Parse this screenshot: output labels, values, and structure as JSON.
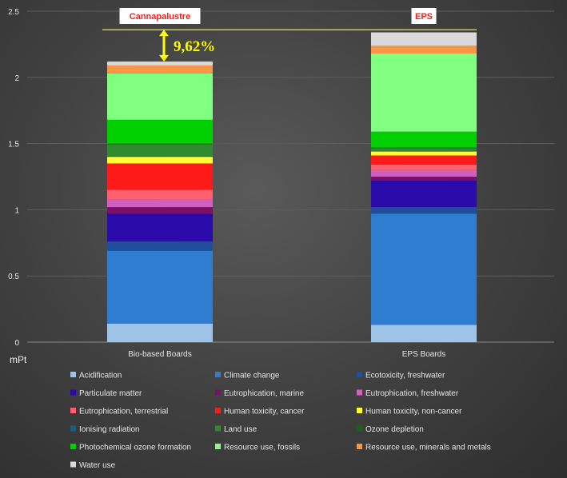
{
  "chart_data": {
    "type": "bar",
    "stacked": true,
    "ylabel": "mPt",
    "ylim": [
      0,
      2.5
    ],
    "yticks": [
      "0",
      "0.5",
      "1",
      "1.5",
      "2",
      "2.5"
    ],
    "categories": [
      "Bio-based Boards",
      "EPS Boards"
    ],
    "bar_labels": [
      "Cannapalustre",
      "EPS"
    ],
    "annotation": "9,62%",
    "reference_line_value": 2.36,
    "series": [
      {
        "name": "Acidification",
        "color": "#9dc3e6",
        "values": [
          0.14,
          0.13
        ]
      },
      {
        "name": "Climate change",
        "color": "#2e7dd1",
        "values": [
          0.55,
          0.84
        ]
      },
      {
        "name": "Ecotoxicity, freshwater",
        "color": "#1f4e9c",
        "values": [
          0.07,
          0.05
        ]
      },
      {
        "name": "Particulate matter",
        "color": "#2a0aa8",
        "values": [
          0.21,
          0.2
        ]
      },
      {
        "name": "Eutrophication, marine",
        "color": "#7a1068",
        "values": [
          0.05,
          0.03
        ]
      },
      {
        "name": "Eutrophication, freshwater",
        "color": "#d060c0",
        "values": [
          0.06,
          0.05
        ]
      },
      {
        "name": "Eutrophication, terrestrial",
        "color": "#ff6070",
        "values": [
          0.07,
          0.04
        ]
      },
      {
        "name": "Human toxicity, cancer",
        "color": "#ff1a1a",
        "values": [
          0.2,
          0.07
        ]
      },
      {
        "name": "Human toxicity, non-cancer",
        "color": "#ffff33",
        "values": [
          0.05,
          0.03
        ]
      },
      {
        "name": "Ionising radiation",
        "color": "#1a5f80",
        "values": [
          0.005,
          0.005
        ]
      },
      {
        "name": "Land use",
        "color": "#2e8b2e",
        "values": [
          0.09,
          0.02
        ]
      },
      {
        "name": "Ozone depletion",
        "color": "#1e5e1e",
        "values": [
          0.005,
          0.005
        ]
      },
      {
        "name": "Photochemical ozone formation",
        "color": "#00d000",
        "values": [
          0.18,
          0.12
        ]
      },
      {
        "name": "Resource use, fossils",
        "color": "#80ff80",
        "values": [
          0.35,
          0.59
        ]
      },
      {
        "name": "Resource use, minerals and metals",
        "color": "#f79646",
        "values": [
          0.06,
          0.06
        ]
      },
      {
        "name": "Water use",
        "color": "#d9d9d9",
        "values": [
          0.03,
          0.1
        ]
      }
    ]
  }
}
